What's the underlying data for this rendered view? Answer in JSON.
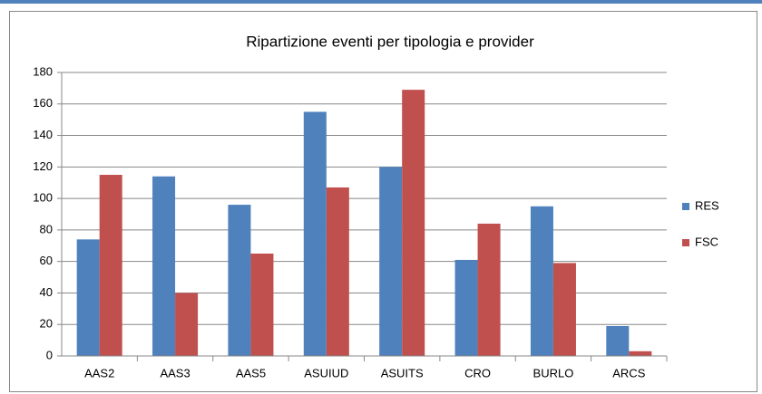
{
  "chart_data": {
    "type": "bar",
    "title": "Ripartizione eventi per tipologia e provider",
    "categories": [
      "AAS2",
      "AAS3",
      "AAS5",
      "ASUIUD",
      "ASUITS",
      "CRO",
      "BURLO",
      "ARCS"
    ],
    "series": [
      {
        "name": "RES",
        "color": "#4f81bd",
        "values": [
          74,
          114,
          96,
          155,
          120,
          61,
          95,
          19
        ]
      },
      {
        "name": "FSC",
        "color": "#c0504d",
        "values": [
          115,
          40,
          65,
          107,
          169,
          84,
          59,
          3
        ]
      }
    ],
    "ylim": [
      0,
      180
    ],
    "yticks": [
      0,
      20,
      40,
      60,
      80,
      100,
      120,
      140,
      160,
      180
    ],
    "grid": true,
    "legend": "right"
  }
}
